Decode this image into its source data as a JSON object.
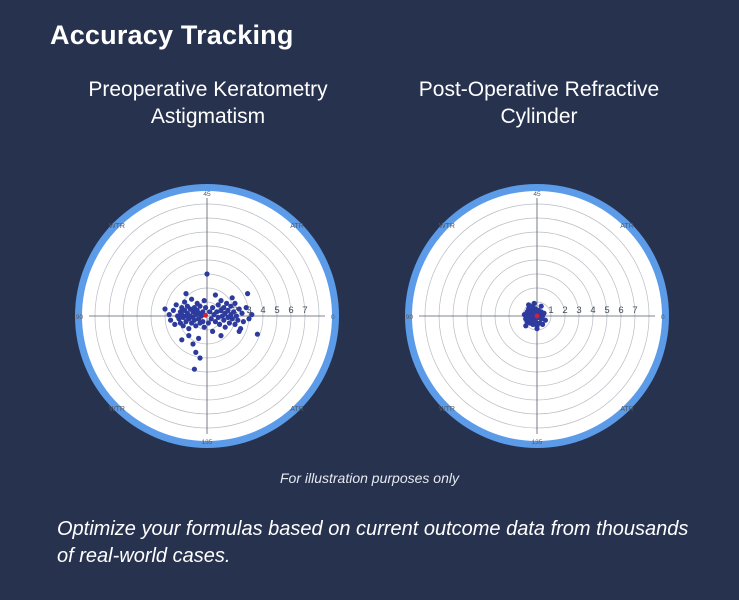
{
  "page": {
    "title": "Accuracy Tracking",
    "disclaimer": "For illustration purposes only",
    "tagline": "Optimize your formulas based on current outcome data from thousands of real-world cases.",
    "colors": {
      "background": "#27324f",
      "ring": "#5b9be8",
      "point": "#2d3a9e",
      "centroid": "#d0203a",
      "grid": "#b8bcc4"
    }
  },
  "chart_data": [
    {
      "type": "scatter",
      "coordinate_system": "polar",
      "title": "Preoperative Keratometry Astigmatism",
      "rings": [
        1,
        2,
        3,
        4,
        5,
        6,
        7
      ],
      "ring_labels": [
        "1",
        "2",
        "3",
        "4",
        "5",
        "6",
        "7"
      ],
      "axis_labels": {
        "top": "45",
        "right": "0",
        "left": "90",
        "bottom": "135"
      },
      "quadrant_labels": {
        "top_left": "WTR",
        "top_right": "ATR",
        "bottom_left": "WTR",
        "bottom_right": "ATR"
      },
      "centroid": {
        "x": -0.1,
        "y": 0.05
      },
      "points": [
        {
          "x": -3.0,
          "y": 0.5
        },
        {
          "x": -2.7,
          "y": 0.1
        },
        {
          "x": -2.6,
          "y": -0.3
        },
        {
          "x": -2.4,
          "y": 0.4
        },
        {
          "x": -2.3,
          "y": -0.6
        },
        {
          "x": -2.2,
          "y": 0.8
        },
        {
          "x": -2.1,
          "y": 0.0
        },
        {
          "x": -2.0,
          "y": -0.2
        },
        {
          "x": -1.9,
          "y": 0.3
        },
        {
          "x": -1.9,
          "y": -0.5
        },
        {
          "x": -1.8,
          "y": 0.6
        },
        {
          "x": -1.8,
          "y": 0.1
        },
        {
          "x": -1.7,
          "y": -0.1
        },
        {
          "x": -1.7,
          "y": -0.7
        },
        {
          "x": -1.6,
          "y": 0.4
        },
        {
          "x": -1.6,
          "y": 1.0
        },
        {
          "x": -1.5,
          "y": 0.0
        },
        {
          "x": -1.5,
          "y": -0.4
        },
        {
          "x": -1.4,
          "y": 0.7
        },
        {
          "x": -1.4,
          "y": 0.2
        },
        {
          "x": -1.3,
          "y": -0.2
        },
        {
          "x": -1.3,
          "y": -0.9
        },
        {
          "x": -1.2,
          "y": 0.5
        },
        {
          "x": -1.2,
          "y": 0.0
        },
        {
          "x": -1.1,
          "y": -0.5
        },
        {
          "x": -1.1,
          "y": 1.2
        },
        {
          "x": -1.0,
          "y": 0.3
        },
        {
          "x": -1.0,
          "y": -0.1
        },
        {
          "x": -0.9,
          "y": 0.6
        },
        {
          "x": -0.9,
          "y": -0.3
        },
        {
          "x": -0.8,
          "y": 0.1
        },
        {
          "x": -0.8,
          "y": -0.7
        },
        {
          "x": -0.7,
          "y": 0.4
        },
        {
          "x": -0.7,
          "y": 0.9
        },
        {
          "x": -0.6,
          "y": -0.2
        },
        {
          "x": -0.6,
          "y": 0.2
        },
        {
          "x": -0.5,
          "y": -0.5
        },
        {
          "x": -0.5,
          "y": 0.7
        },
        {
          "x": -0.4,
          "y": 0.0
        },
        {
          "x": -0.3,
          "y": -0.4
        },
        {
          "x": -0.3,
          "y": 0.3
        },
        {
          "x": -0.2,
          "y": 1.1
        },
        {
          "x": -0.2,
          "y": -0.8
        },
        {
          "x": -1.3,
          "y": -1.4
        },
        {
          "x": -1.8,
          "y": -1.7
        },
        {
          "x": -0.6,
          "y": -1.6
        },
        {
          "x": -1.0,
          "y": -2.0
        },
        {
          "x": -0.8,
          "y": -2.6
        },
        {
          "x": -0.5,
          "y": -3.0
        },
        {
          "x": -0.9,
          "y": -3.8
        },
        {
          "x": -1.5,
          "y": 1.6
        },
        {
          "x": 0.0,
          "y": 3.0
        },
        {
          "x": 0.2,
          "y": 0.3
        },
        {
          "x": 0.3,
          "y": -0.2
        },
        {
          "x": 0.4,
          "y": 0.6
        },
        {
          "x": 0.5,
          "y": 0.1
        },
        {
          "x": 0.6,
          "y": -0.4
        },
        {
          "x": 0.7,
          "y": 0.3
        },
        {
          "x": 0.8,
          "y": 0.8
        },
        {
          "x": 0.8,
          "y": -0.1
        },
        {
          "x": 0.9,
          "y": -0.6
        },
        {
          "x": 1.0,
          "y": 0.4
        },
        {
          "x": 1.0,
          "y": 1.1
        },
        {
          "x": 1.1,
          "y": 0.0
        },
        {
          "x": 1.2,
          "y": -0.3
        },
        {
          "x": 1.2,
          "y": 0.6
        },
        {
          "x": 1.3,
          "y": 0.2
        },
        {
          "x": 1.3,
          "y": -0.8
        },
        {
          "x": 1.4,
          "y": 0.9
        },
        {
          "x": 1.5,
          "y": -0.1
        },
        {
          "x": 1.5,
          "y": 0.4
        },
        {
          "x": 1.6,
          "y": -0.5
        },
        {
          "x": 1.7,
          "y": 0.1
        },
        {
          "x": 1.7,
          "y": 0.7
        },
        {
          "x": 1.8,
          "y": -0.2
        },
        {
          "x": 1.9,
          "y": 0.3
        },
        {
          "x": 2.0,
          "y": -0.6
        },
        {
          "x": 2.0,
          "y": 0.9
        },
        {
          "x": 2.1,
          "y": 0.0
        },
        {
          "x": 2.2,
          "y": -0.3
        },
        {
          "x": 2.3,
          "y": 0.5
        },
        {
          "x": 2.4,
          "y": -0.9
        },
        {
          "x": 2.5,
          "y": 0.2
        },
        {
          "x": 2.6,
          "y": -0.4
        },
        {
          "x": 2.8,
          "y": 0.6
        },
        {
          "x": 3.0,
          "y": -0.2
        },
        {
          "x": 3.2,
          "y": 0.1
        },
        {
          "x": 2.9,
          "y": 1.6
        },
        {
          "x": 3.6,
          "y": -1.3
        },
        {
          "x": 1.0,
          "y": -1.4
        },
        {
          "x": 0.6,
          "y": 1.5
        },
        {
          "x": 2.3,
          "y": -1.1
        },
        {
          "x": 1.8,
          "y": 1.3
        },
        {
          "x": 0.4,
          "y": -1.1
        },
        {
          "x": -0.1,
          "y": 0.6
        },
        {
          "x": 0.1,
          "y": -0.5
        }
      ]
    },
    {
      "type": "scatter",
      "coordinate_system": "polar",
      "title": "Post-Operative Refractive Cylinder",
      "rings": [
        1,
        2,
        3,
        4,
        5,
        6,
        7
      ],
      "ring_labels": [
        "1",
        "2",
        "3",
        "4",
        "5",
        "6",
        "7"
      ],
      "axis_labels": {
        "top": "45",
        "right": "0",
        "left": "90",
        "bottom": "135"
      },
      "quadrant_labels": {
        "top_left": "WTR",
        "top_right": "ATR",
        "bottom_left": "WTR",
        "bottom_right": "ATR"
      },
      "centroid": {
        "x": 0.0,
        "y": 0.0
      },
      "points": [
        {
          "x": -0.9,
          "y": 0.1
        },
        {
          "x": -0.8,
          "y": -0.2
        },
        {
          "x": -0.7,
          "y": 0.3
        },
        {
          "x": -0.7,
          "y": -0.4
        },
        {
          "x": -0.6,
          "y": 0.0
        },
        {
          "x": -0.6,
          "y": 0.5
        },
        {
          "x": -0.5,
          "y": -0.1
        },
        {
          "x": -0.5,
          "y": 0.2
        },
        {
          "x": -0.5,
          "y": -0.5
        },
        {
          "x": -0.4,
          "y": 0.4
        },
        {
          "x": -0.4,
          "y": -0.3
        },
        {
          "x": -0.3,
          "y": 0.0
        },
        {
          "x": -0.3,
          "y": 0.7
        },
        {
          "x": -0.3,
          "y": -0.6
        },
        {
          "x": -0.2,
          "y": 0.3
        },
        {
          "x": -0.2,
          "y": -0.2
        },
        {
          "x": -0.1,
          "y": 0.5
        },
        {
          "x": -0.1,
          "y": -0.4
        },
        {
          "x": 0.0,
          "y": 0.2
        },
        {
          "x": 0.0,
          "y": -0.7
        },
        {
          "x": 0.1,
          "y": 0.4
        },
        {
          "x": 0.1,
          "y": -0.1
        },
        {
          "x": 0.2,
          "y": 0.1
        },
        {
          "x": 0.2,
          "y": -0.5
        },
        {
          "x": 0.3,
          "y": 0.3
        },
        {
          "x": 0.3,
          "y": -0.2
        },
        {
          "x": 0.4,
          "y": 0.0
        },
        {
          "x": 0.4,
          "y": -0.6
        },
        {
          "x": 0.5,
          "y": 0.2
        },
        {
          "x": 0.6,
          "y": -0.3
        },
        {
          "x": -0.8,
          "y": -0.7
        },
        {
          "x": -0.2,
          "y": 0.9
        },
        {
          "x": 0.3,
          "y": 0.7
        },
        {
          "x": -0.6,
          "y": 0.8
        },
        {
          "x": 0.0,
          "y": -0.9
        },
        {
          "x": -0.4,
          "y": 0.0
        }
      ]
    }
  ]
}
